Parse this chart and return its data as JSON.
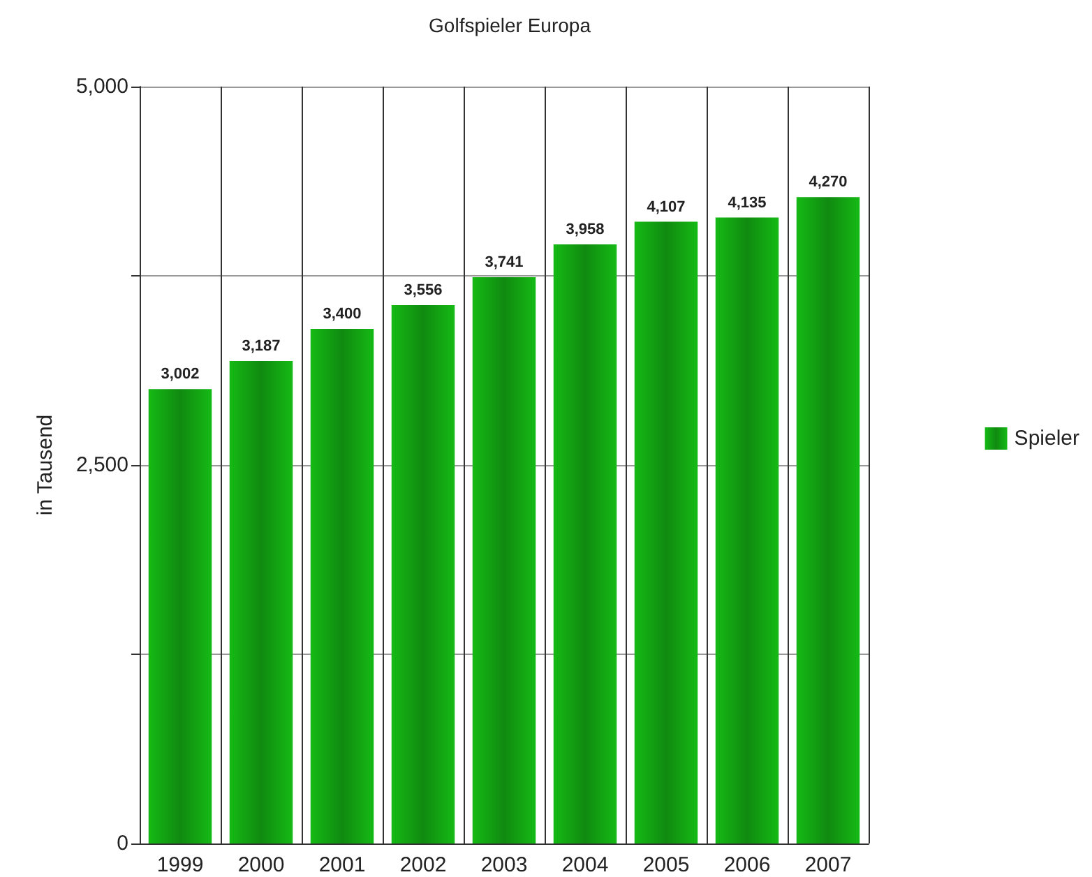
{
  "chart_data": {
    "type": "bar",
    "title": "Golfspieler Europa",
    "ylabel": "in Tausend",
    "categories": [
      "1999",
      "2000",
      "2001",
      "2002",
      "2003",
      "2004",
      "2005",
      "2006",
      "2007"
    ],
    "series": [
      {
        "name": "Spieler",
        "color": "#108a10",
        "values": [
          3002,
          3187,
          3400,
          3556,
          3741,
          3958,
          4107,
          4135,
          4270
        ],
        "value_labels": [
          "3,002",
          "3,187",
          "3,400",
          "3,556",
          "3,741",
          "3,958",
          "4,107",
          "4,135",
          "4,270"
        ]
      }
    ],
    "ylim": [
      0,
      5000
    ],
    "yticks": [
      0,
      {
        "value": 1250,
        "label": null
      },
      {
        "value": 2500,
        "label": "2,500"
      },
      {
        "value": 3750,
        "label": null
      },
      {
        "value": 5000,
        "label": "5,000"
      }
    ],
    "grid": true,
    "legend": "right"
  }
}
